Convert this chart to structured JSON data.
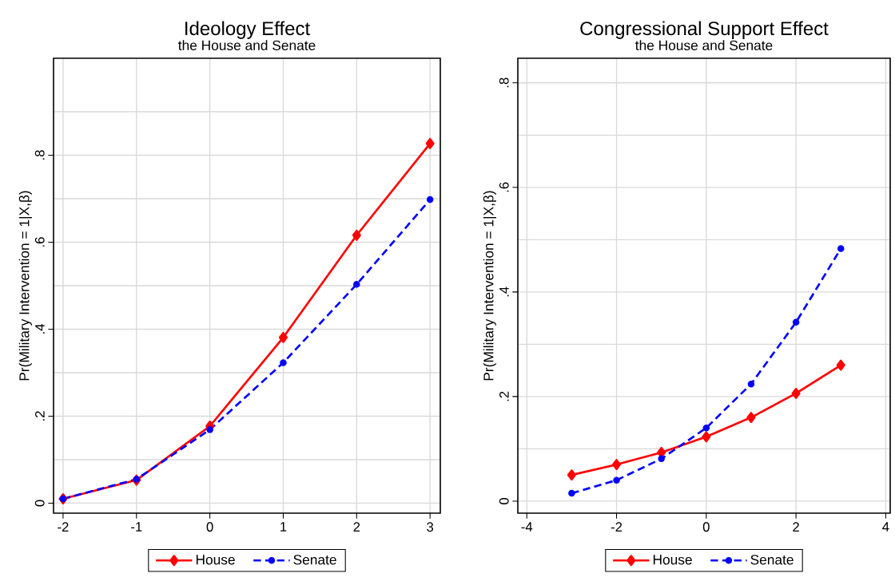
{
  "chart_data": [
    {
      "type": "line",
      "title": "Ideology Effect",
      "subtitle": "the House and Senate",
      "ylabel": "Pr(Military Intervention = 1|X,β)",
      "x": [
        -2,
        -1,
        0,
        1,
        2,
        3
      ],
      "series": [
        {
          "name": "House",
          "color": "#ff0000",
          "marker": "diamond",
          "line_style": "solid",
          "values": [
            0.01,
            0.053,
            0.177,
            0.381,
            0.616,
            0.827
          ]
        },
        {
          "name": "Senate",
          "color": "#0000ff",
          "marker": "circle",
          "line_style": "dashed",
          "values": [
            0.01,
            0.055,
            0.169,
            0.323,
            0.503,
            0.698
          ]
        }
      ],
      "xlim": [
        -2.13,
        3.14
      ],
      "ylim": [
        -0.023,
        1.023
      ],
      "xticks": [
        -2,
        -1,
        0,
        1,
        2,
        3
      ],
      "yticks": [
        {
          "value": 0,
          "label": "0"
        },
        {
          "value": 0.1,
          "label": null
        },
        {
          "value": 0.2,
          "label": ".2"
        },
        {
          "value": 0.3,
          "label": null
        },
        {
          "value": 0.4,
          "label": ".4"
        },
        {
          "value": 0.5,
          "label": null
        },
        {
          "value": 0.6,
          "label": ".6"
        },
        {
          "value": 0.7,
          "label": null
        },
        {
          "value": 0.8,
          "label": ".8"
        },
        {
          "value": 0.9,
          "label": null
        }
      ],
      "grid": true,
      "legend": "bottom"
    },
    {
      "type": "line",
      "title": "Congressional Support Effect",
      "subtitle": "the House and Senate",
      "ylabel": "Pr(Military Intervention = 1|X,β)",
      "x": [
        -3,
        -2,
        -1,
        0,
        1,
        2,
        3
      ],
      "series": [
        {
          "name": "House",
          "color": "#ff0000",
          "marker": "diamond",
          "line_style": "solid",
          "values": [
            0.05,
            0.07,
            0.093,
            0.123,
            0.16,
            0.206,
            0.26
          ]
        },
        {
          "name": "Senate",
          "color": "#0000ff",
          "marker": "circle",
          "line_style": "dashed",
          "values": [
            0.015,
            0.04,
            0.081,
            0.14,
            0.224,
            0.342,
            0.483
          ]
        }
      ],
      "xlim": [
        -4.2,
        4.1
      ],
      "ylim": [
        -0.023,
        0.847
      ],
      "xticks": [
        -4,
        -2,
        0,
        2,
        4
      ],
      "yticks": [
        {
          "value": 0,
          "label": "0"
        },
        {
          "value": 0.1,
          "label": null
        },
        {
          "value": 0.2,
          "label": ".2"
        },
        {
          "value": 0.3,
          "label": null
        },
        {
          "value": 0.4,
          "label": ".4"
        },
        {
          "value": 0.5,
          "label": null
        },
        {
          "value": 0.6,
          "label": ".6"
        },
        {
          "value": 0.7,
          "label": null
        },
        {
          "value": 0.8,
          "label": ".8"
        }
      ],
      "grid": true,
      "legend": "bottom"
    }
  ]
}
